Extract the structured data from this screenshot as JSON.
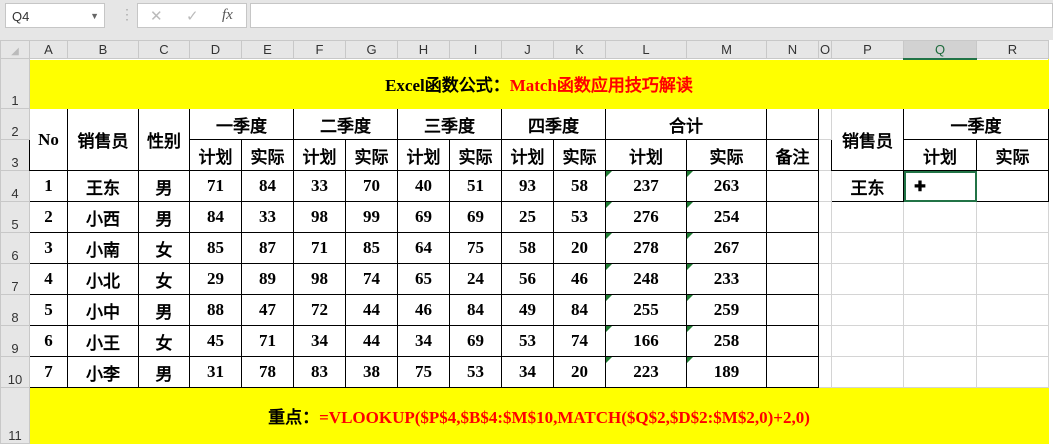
{
  "toolbar": {
    "name_box": "Q4",
    "cancel_icon": "✕",
    "enter_icon": "✓",
    "fx_label": "fx",
    "formula_value": ""
  },
  "columns": [
    "A",
    "B",
    "C",
    "D",
    "E",
    "F",
    "G",
    "H",
    "I",
    "J",
    "K",
    "L",
    "M",
    "N",
    "O",
    "P",
    "Q",
    "R"
  ],
  "selected_column": "Q",
  "title": {
    "black": "Excel函数公式：",
    "red": "Match函数应用技巧解读"
  },
  "main_table": {
    "headers": {
      "no": "No",
      "salesperson": "销售员",
      "gender": "性别",
      "quarters": [
        "一季度",
        "二季度",
        "三季度",
        "四季度",
        "合计"
      ],
      "plan": "计划",
      "actual": "实际",
      "note": "备注"
    },
    "rows": [
      [
        "1",
        "王东",
        "男",
        "71",
        "84",
        "33",
        "70",
        "40",
        "51",
        "93",
        "58",
        "237",
        "263"
      ],
      [
        "2",
        "小西",
        "男",
        "84",
        "33",
        "98",
        "99",
        "69",
        "69",
        "25",
        "53",
        "276",
        "254"
      ],
      [
        "3",
        "小南",
        "女",
        "85",
        "87",
        "71",
        "85",
        "64",
        "75",
        "58",
        "20",
        "278",
        "267"
      ],
      [
        "4",
        "小北",
        "女",
        "29",
        "89",
        "98",
        "74",
        "65",
        "24",
        "56",
        "46",
        "248",
        "233"
      ],
      [
        "5",
        "小中",
        "男",
        "88",
        "47",
        "72",
        "44",
        "46",
        "84",
        "49",
        "84",
        "255",
        "259"
      ],
      [
        "6",
        "小王",
        "女",
        "45",
        "71",
        "34",
        "44",
        "34",
        "69",
        "53",
        "74",
        "166",
        "258"
      ],
      [
        "7",
        "小李",
        "男",
        "31",
        "78",
        "83",
        "38",
        "75",
        "53",
        "34",
        "20",
        "223",
        "189"
      ]
    ]
  },
  "lookup_table": {
    "salesperson": "销售员",
    "quarter": "一季度",
    "plan": "计划",
    "actual": "实际",
    "name": "王东",
    "plan_value": "",
    "actual_value": ""
  },
  "footer": {
    "black": "重点：",
    "red": "=VLOOKUP($P$4,$B$4:$M$10,MATCH($Q$2,$D$2:$M$2,0)+2,0)"
  },
  "colors": {
    "yellow": "#ffff00",
    "red": "#ff0000",
    "selection": "#217346"
  }
}
